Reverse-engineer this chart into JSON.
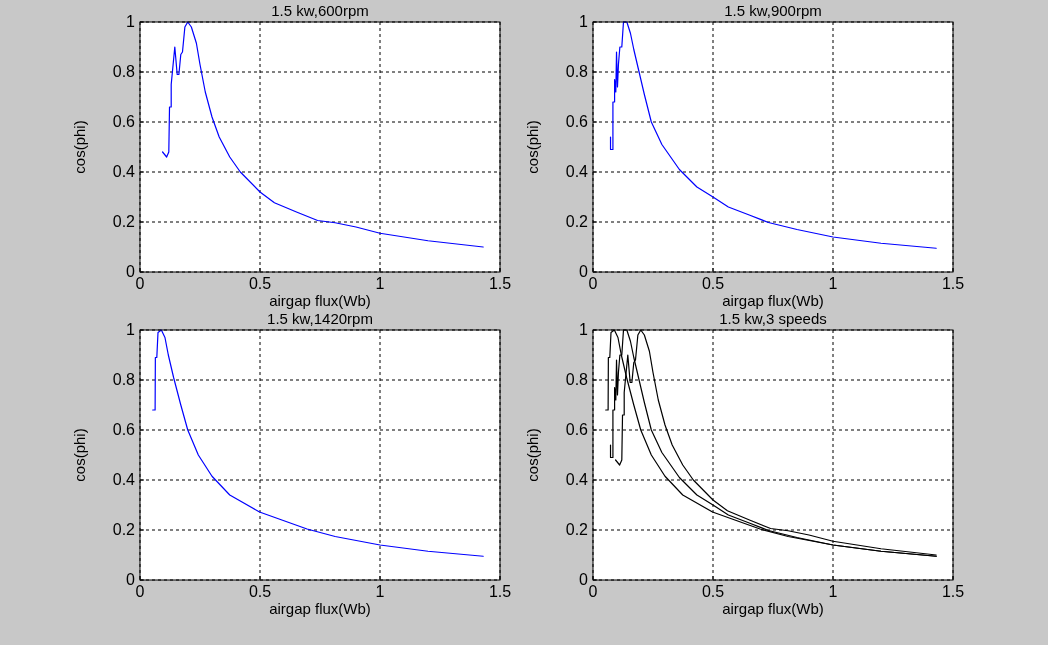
{
  "chart_data": [
    {
      "type": "line",
      "title": "1.5 kw,600rpm",
      "xlabel": "airgap flux(Wb)",
      "ylabel": "cos(phi)",
      "xlim": [
        0,
        1.5
      ],
      "xticks": [
        0,
        0.5,
        1,
        1.5
      ],
      "ylim": [
        0,
        1
      ],
      "yticks": [
        0,
        0.2,
        0.4,
        0.6,
        0.8,
        1
      ],
      "grid": true,
      "series": [
        {
          "color": "#0000ff",
          "x": [
            0.094,
            0.111,
            0.12,
            0.123,
            0.13,
            0.13,
            0.145,
            0.155,
            0.162,
            0.17,
            0.177,
            0.187,
            0.199,
            0.214,
            0.235,
            0.25,
            0.272,
            0.3,
            0.33,
            0.374,
            0.418,
            0.5,
            0.56,
            0.652,
            0.74,
            0.813,
            0.9,
            1.0,
            1.2,
            1.43
          ],
          "values": [
            0.48,
            0.46,
            0.48,
            0.66,
            0.66,
            0.75,
            0.9,
            0.79,
            0.79,
            0.87,
            0.88,
            0.98,
            1.0,
            0.98,
            0.915,
            0.83,
            0.72,
            0.62,
            0.54,
            0.46,
            0.4,
            0.32,
            0.277,
            0.24,
            0.206,
            0.197,
            0.18,
            0.155,
            0.125,
            0.1
          ]
        }
      ]
    },
    {
      "type": "line",
      "title": "1.5 kw,900rpm",
      "xlabel": "airgap flux(Wb)",
      "ylabel": "cos(phi)",
      "xlim": [
        0,
        1.5
      ],
      "xticks": [
        0,
        0.5,
        1,
        1.5
      ],
      "ylim": [
        0,
        1
      ],
      "yticks": [
        0,
        0.2,
        0.4,
        0.6,
        0.8,
        1
      ],
      "grid": true,
      "series": [
        {
          "color": "#0000ff",
          "x": [
            0.073,
            0.073,
            0.083,
            0.083,
            0.09,
            0.09,
            0.095,
            0.098,
            0.102,
            0.106,
            0.112,
            0.12,
            0.127,
            0.141,
            0.156,
            0.17,
            0.192,
            0.214,
            0.243,
            0.287,
            0.36,
            0.433,
            0.5,
            0.564,
            0.651,
            0.731,
            0.85,
            1.0,
            1.2,
            1.43
          ],
          "values": [
            0.54,
            0.49,
            0.49,
            0.68,
            0.68,
            0.77,
            0.72,
            0.88,
            0.74,
            0.83,
            0.9,
            0.9,
            1.0,
            1.0,
            0.955,
            0.89,
            0.8,
            0.71,
            0.6,
            0.51,
            0.41,
            0.34,
            0.3,
            0.26,
            0.228,
            0.198,
            0.17,
            0.14,
            0.115,
            0.095
          ]
        }
      ]
    },
    {
      "type": "line",
      "title": "1.5 kw,1420rpm",
      "xlabel": "airgap flux(Wb)",
      "ylabel": "cos(phi)",
      "xlim": [
        0,
        1.5
      ],
      "xticks": [
        0,
        0.5,
        1,
        1.5
      ],
      "ylim": [
        0,
        1
      ],
      "yticks": [
        0,
        0.2,
        0.4,
        0.6,
        0.8,
        1
      ],
      "grid": true,
      "series": [
        {
          "color": "#0000ff",
          "x": [
            0.053,
            0.063,
            0.064,
            0.07,
            0.075,
            0.089,
            0.104,
            0.118,
            0.14,
            0.17,
            0.199,
            0.243,
            0.3,
            0.374,
            0.498,
            0.594,
            0.696,
            0.813,
            1.0,
            1.2,
            1.43
          ],
          "values": [
            0.68,
            0.68,
            0.89,
            0.89,
            0.99,
            1.0,
            0.97,
            0.9,
            0.81,
            0.7,
            0.6,
            0.5,
            0.415,
            0.34,
            0.272,
            0.239,
            0.204,
            0.174,
            0.14,
            0.115,
            0.095
          ]
        }
      ]
    },
    {
      "type": "line",
      "title": "1.5 kw,3 speeds",
      "xlabel": "airgap flux(Wb)",
      "ylabel": "cos(phi)",
      "xlim": [
        0,
        1.5
      ],
      "xticks": [
        0,
        0.5,
        1,
        1.5
      ],
      "ylim": [
        0,
        1
      ],
      "yticks": [
        0,
        0.2,
        0.4,
        0.6,
        0.8,
        1
      ],
      "grid": true,
      "series": [
        {
          "color": "#000000",
          "x": [
            0.094,
            0.111,
            0.12,
            0.123,
            0.13,
            0.13,
            0.145,
            0.155,
            0.162,
            0.17,
            0.177,
            0.187,
            0.199,
            0.214,
            0.235,
            0.25,
            0.272,
            0.3,
            0.33,
            0.374,
            0.418,
            0.5,
            0.56,
            0.652,
            0.74,
            0.813,
            0.9,
            1.0,
            1.2,
            1.43
          ],
          "values": [
            0.48,
            0.46,
            0.48,
            0.66,
            0.66,
            0.75,
            0.9,
            0.79,
            0.79,
            0.87,
            0.88,
            0.98,
            1.0,
            0.98,
            0.915,
            0.83,
            0.72,
            0.62,
            0.54,
            0.46,
            0.4,
            0.32,
            0.277,
            0.24,
            0.206,
            0.197,
            0.18,
            0.155,
            0.125,
            0.1
          ]
        },
        {
          "color": "#000000",
          "x": [
            0.073,
            0.073,
            0.083,
            0.083,
            0.09,
            0.09,
            0.095,
            0.098,
            0.102,
            0.106,
            0.112,
            0.12,
            0.127,
            0.141,
            0.156,
            0.17,
            0.192,
            0.214,
            0.243,
            0.287,
            0.36,
            0.433,
            0.5,
            0.564,
            0.651,
            0.731,
            0.85,
            1.0,
            1.2,
            1.43
          ],
          "values": [
            0.54,
            0.49,
            0.49,
            0.68,
            0.68,
            0.77,
            0.72,
            0.88,
            0.74,
            0.83,
            0.9,
            0.9,
            1.0,
            1.0,
            0.955,
            0.89,
            0.8,
            0.71,
            0.6,
            0.51,
            0.41,
            0.34,
            0.3,
            0.26,
            0.228,
            0.198,
            0.17,
            0.14,
            0.115,
            0.095
          ]
        },
        {
          "color": "#000000",
          "x": [
            0.053,
            0.063,
            0.064,
            0.07,
            0.075,
            0.089,
            0.104,
            0.118,
            0.14,
            0.17,
            0.199,
            0.243,
            0.3,
            0.374,
            0.498,
            0.594,
            0.696,
            0.813,
            1.0,
            1.2,
            1.43
          ],
          "values": [
            0.68,
            0.68,
            0.89,
            0.89,
            0.99,
            1.0,
            0.97,
            0.9,
            0.81,
            0.7,
            0.6,
            0.5,
            0.415,
            0.34,
            0.272,
            0.239,
            0.204,
            0.174,
            0.14,
            0.115,
            0.095
          ]
        }
      ]
    }
  ]
}
